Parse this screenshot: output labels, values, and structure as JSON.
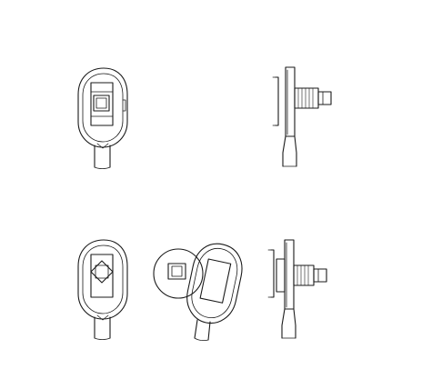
{
  "drawing": {
    "views": [
      {
        "id": "view-front-top",
        "name": "handle-front-view"
      },
      {
        "id": "view-side-top",
        "name": "handle-side-view"
      },
      {
        "id": "view-front-bottom",
        "name": "handle-front-view-rotated-insert"
      },
      {
        "id": "view-oblique-bottom",
        "name": "handle-oblique-view-with-disc"
      },
      {
        "id": "view-side-bottom",
        "name": "handle-side-view-with-disc"
      }
    ],
    "colors": {
      "background": "#ffffff",
      "line": "#1a1a1a"
    }
  }
}
